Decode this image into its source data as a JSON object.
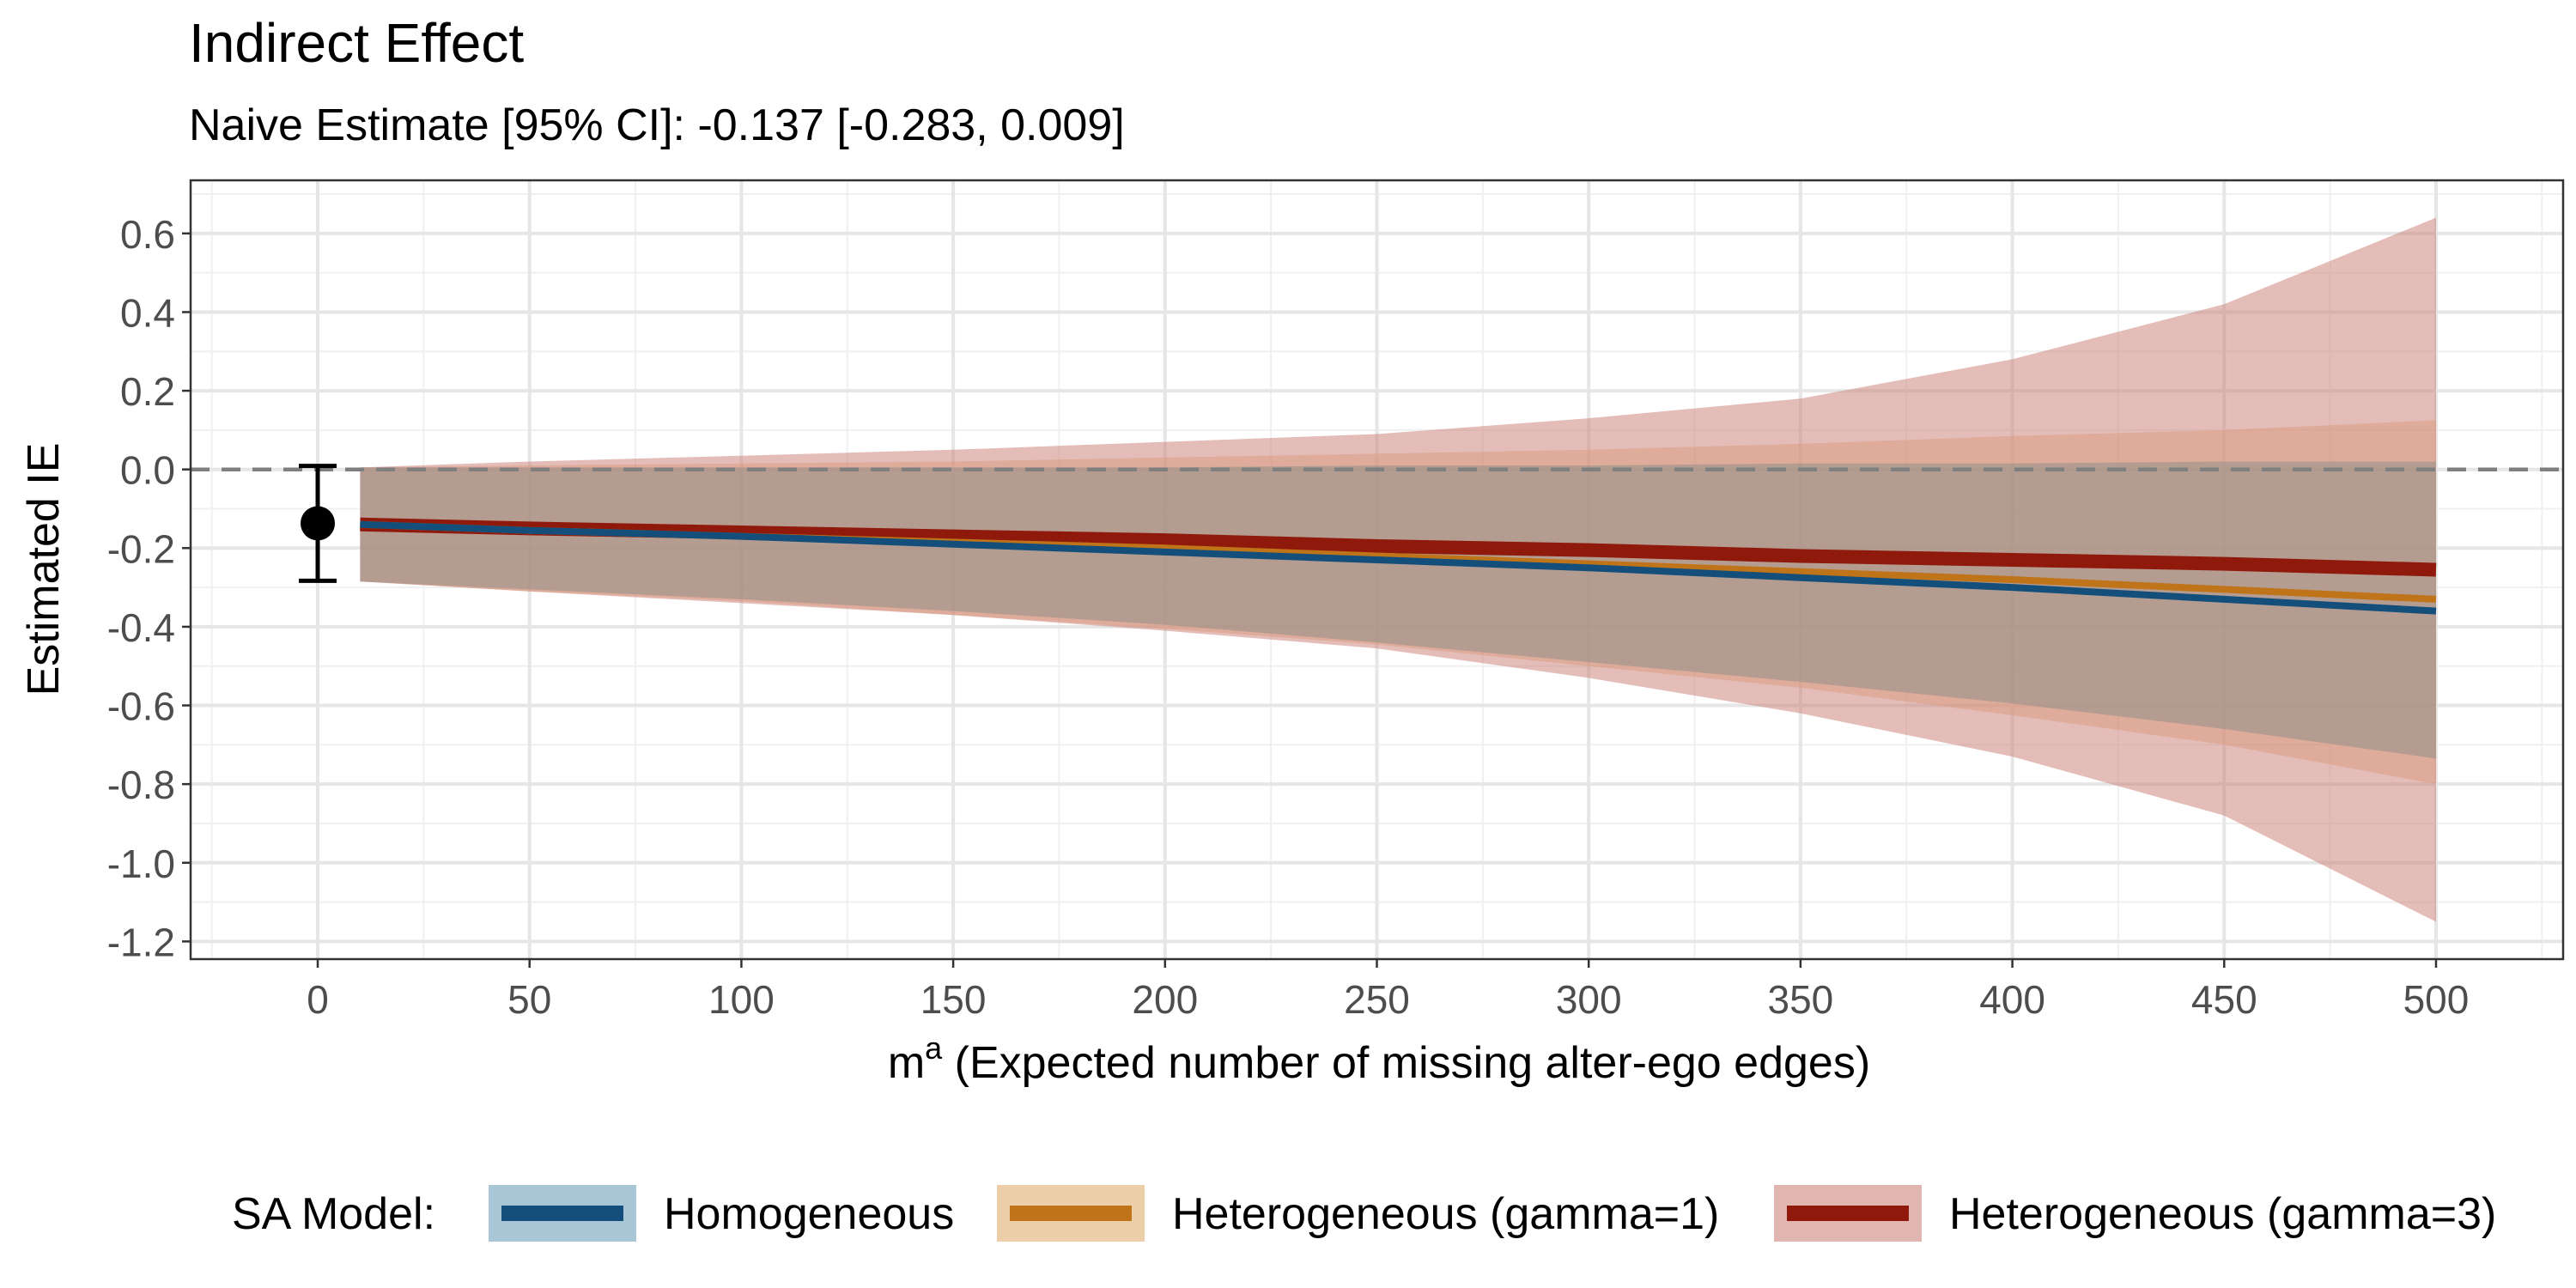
{
  "chart_data": {
    "type": "line",
    "title": "Indirect Effect",
    "subtitle": "Naive Estimate [95% CI]: -0.137 [-0.283, 0.009]",
    "xlabel_base": "m",
    "xlabel_sup": "a",
    "xlabel_rest": " (Expected number of missing alter-ego edges)",
    "ylabel": "Estimated IE",
    "xlim": [
      -30,
      530
    ],
    "ylim": [
      -1.245,
      0.735
    ],
    "x_ticks": [
      0,
      50,
      100,
      150,
      200,
      250,
      300,
      350,
      400,
      450,
      500
    ],
    "x_tick_labels": [
      "0",
      "50",
      "100",
      "150",
      "200",
      "250",
      "300",
      "350",
      "400",
      "450",
      "500"
    ],
    "y_ticks": [
      0.6,
      0.4,
      0.2,
      0.0,
      -0.2,
      -0.4,
      -0.6,
      -0.8,
      -1.0,
      -1.2
    ],
    "y_tick_labels": [
      "0.6",
      "0.4",
      "0.2",
      "0.0",
      "-0.2",
      "-0.4",
      "-0.6",
      "-0.8",
      "-1.0",
      "-1.2"
    ],
    "reference_line": {
      "y": 0.0,
      "style": "dashed"
    },
    "naive_estimate": {
      "x": 0,
      "estimate": -0.137,
      "lower": -0.283,
      "upper": 0.009
    },
    "x": [
      10,
      50,
      100,
      150,
      200,
      250,
      300,
      350,
      400,
      450,
      500
    ],
    "series": [
      {
        "name": "Heterogeneous (gamma=3)",
        "color": "#8f1a0c",
        "band_color": "#c97b74",
        "estimate": [
          -0.14,
          -0.15,
          -0.16,
          -0.17,
          -0.18,
          -0.195,
          -0.205,
          -0.22,
          -0.23,
          -0.24,
          -0.255
        ],
        "lower": [
          -0.285,
          -0.31,
          -0.34,
          -0.37,
          -0.41,
          -0.455,
          -0.53,
          -0.62,
          -0.73,
          -0.88,
          -1.15
        ],
        "upper": [
          0.005,
          0.02,
          0.035,
          0.05,
          0.07,
          0.09,
          0.13,
          0.18,
          0.28,
          0.42,
          0.64
        ]
      },
      {
        "name": "Heterogeneous (gamma=1)",
        "color": "#c07419",
        "band_color": "#d99a7c",
        "estimate": [
          -0.14,
          -0.155,
          -0.17,
          -0.185,
          -0.2,
          -0.22,
          -0.24,
          -0.26,
          -0.28,
          -0.305,
          -0.33
        ],
        "lower": [
          -0.285,
          -0.31,
          -0.335,
          -0.37,
          -0.405,
          -0.445,
          -0.5,
          -0.555,
          -0.625,
          -0.7,
          -0.8
        ],
        "upper": [
          0.005,
          0.01,
          0.015,
          0.02,
          0.03,
          0.04,
          0.05,
          0.065,
          0.085,
          0.1,
          0.125
        ]
      },
      {
        "name": "Homogeneous",
        "color": "#134f7a",
        "band_color": "#8a8e88",
        "estimate": [
          -0.14,
          -0.155,
          -0.17,
          -0.19,
          -0.21,
          -0.23,
          -0.25,
          -0.275,
          -0.3,
          -0.33,
          -0.36
        ],
        "lower": [
          -0.285,
          -0.305,
          -0.33,
          -0.36,
          -0.395,
          -0.44,
          -0.49,
          -0.54,
          -0.595,
          -0.66,
          -0.735
        ],
        "upper": [
          0.005,
          0.005,
          0.005,
          0.005,
          0.005,
          0.01,
          0.01,
          0.015,
          0.015,
          0.02,
          0.02
        ]
      }
    ],
    "legend": {
      "title": "SA Model:",
      "position": "bottom",
      "items": [
        {
          "label": "Homogeneous",
          "line_color": "#134f7a",
          "fill_color": "#a9c6d6"
        },
        {
          "label": "Heterogeneous (gamma=1)",
          "line_color": "#c07419",
          "fill_color": "#eccfa9"
        },
        {
          "label": "Heterogeneous (gamma=3)",
          "line_color": "#8f1a0c",
          "fill_color": "#e1b6b0"
        }
      ]
    }
  }
}
